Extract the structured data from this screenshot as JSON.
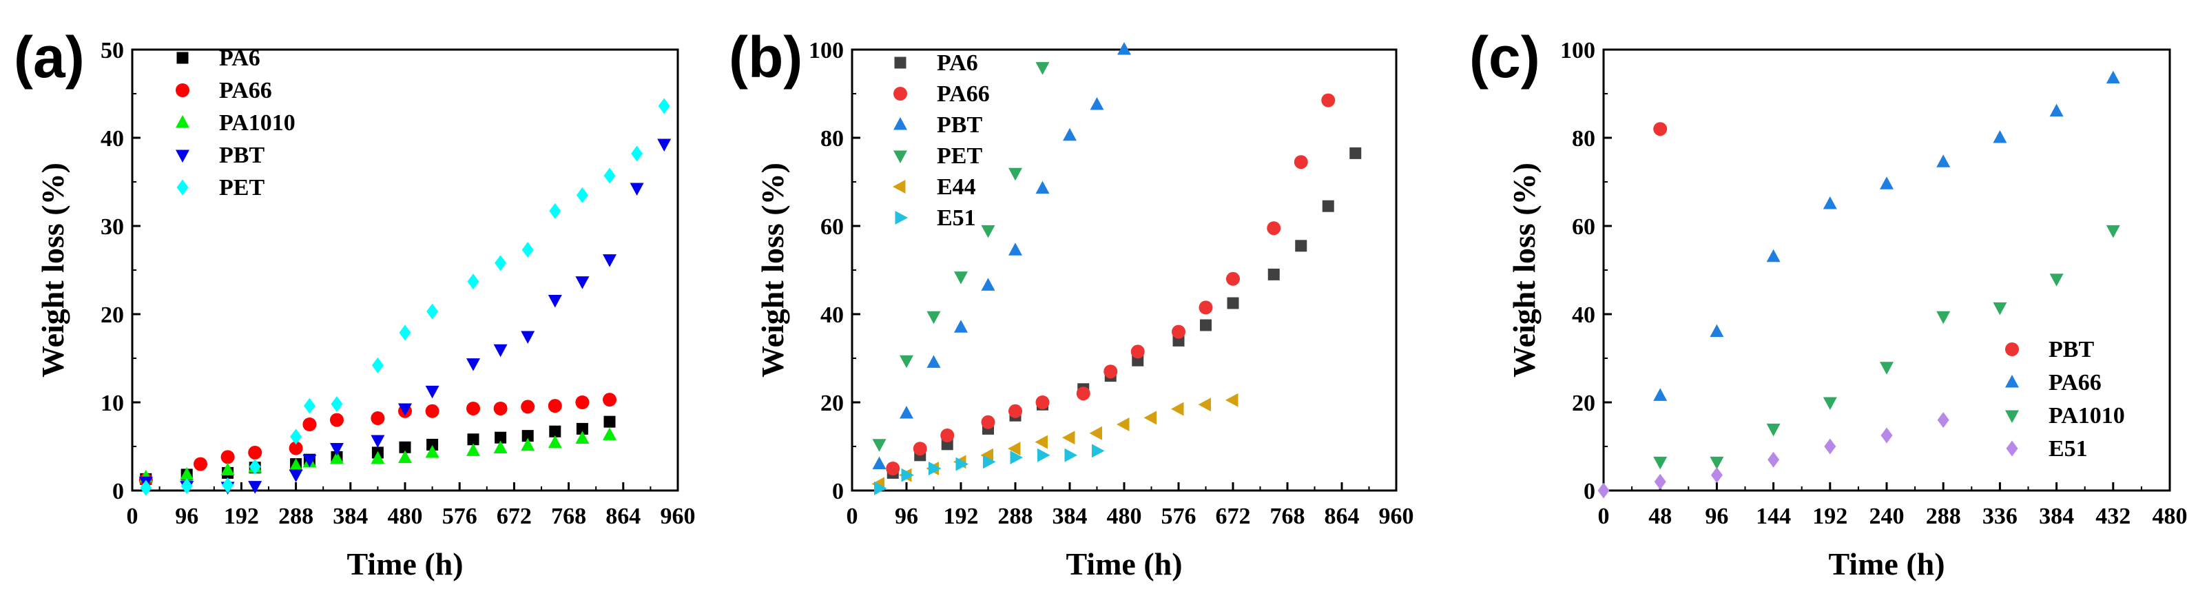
{
  "chart_data": [
    {
      "panel_label": "(a)",
      "type": "scatter",
      "xlabel": "Time (h)",
      "ylabel": "Weight loss (%)",
      "xlim": [
        0,
        960
      ],
      "ylim": [
        0,
        50
      ],
      "xticks": [
        0,
        96,
        192,
        288,
        384,
        480,
        576,
        672,
        768,
        864,
        960
      ],
      "yticks": [
        0,
        10,
        20,
        30,
        40,
        50
      ],
      "legend_position": "top-left",
      "series": [
        {
          "name": "PA6",
          "marker": "square",
          "color": "#000000",
          "x": [
            24,
            96,
            168,
            216,
            288,
            312,
            360,
            432,
            480,
            528,
            600,
            648,
            696,
            744,
            792,
            840
          ],
          "y": [
            1.3,
            1.8,
            2.0,
            2.6,
            3.0,
            3.5,
            3.8,
            4.3,
            4.9,
            5.2,
            5.8,
            6.0,
            6.2,
            6.7,
            7.0,
            7.8
          ]
        },
        {
          "name": "PA66",
          "marker": "circle",
          "color": "#ff0000",
          "x": [
            24,
            120,
            168,
            216,
            288,
            312,
            360,
            432,
            480,
            528,
            600,
            648,
            696,
            744,
            792,
            840
          ],
          "y": [
            1.2,
            3.0,
            3.8,
            4.3,
            4.8,
            7.5,
            8.0,
            8.2,
            9.0,
            9.0,
            9.3,
            9.3,
            9.5,
            9.6,
            10.0,
            10.3
          ]
        },
        {
          "name": "PA1010",
          "marker": "triangle-up",
          "color": "#00ee00",
          "x": [
            24,
            96,
            168,
            216,
            288,
            312,
            360,
            432,
            480,
            528,
            600,
            648,
            696,
            744,
            792,
            840
          ],
          "y": [
            1.5,
            1.8,
            2.3,
            2.6,
            2.8,
            3.2,
            3.6,
            3.6,
            3.7,
            4.3,
            4.5,
            4.8,
            5.1,
            5.4,
            5.9,
            6.3
          ]
        },
        {
          "name": "PBT",
          "marker": "triangle-down",
          "color": "#0000ee",
          "x": [
            24,
            96,
            168,
            216,
            288,
            312,
            360,
            432,
            480,
            528,
            600,
            648,
            696,
            744,
            792,
            840,
            888,
            936
          ],
          "y": [
            1.0,
            0.5,
            0.4,
            0.5,
            1.8,
            3.5,
            4.8,
            5.7,
            9.3,
            11.3,
            14.4,
            16.0,
            17.5,
            21.6,
            23.7,
            26.2,
            34.3,
            39.3
          ]
        },
        {
          "name": "PET",
          "marker": "diamond",
          "color": "#00ffff",
          "x": [
            24,
            96,
            168,
            216,
            288,
            312,
            360,
            432,
            480,
            528,
            600,
            648,
            696,
            744,
            792,
            840,
            888,
            936
          ],
          "y": [
            0.3,
            0.5,
            0.6,
            2.7,
            6.1,
            9.6,
            9.8,
            14.2,
            17.9,
            20.3,
            23.7,
            25.8,
            27.3,
            31.7,
            33.5,
            35.7,
            38.2,
            43.6
          ]
        }
      ]
    },
    {
      "panel_label": "(b)",
      "type": "scatter",
      "xlabel": "Time (h)",
      "ylabel": "Weight loss (%)",
      "xlim": [
        0,
        960
      ],
      "ylim": [
        0,
        100
      ],
      "xticks": [
        0,
        96,
        192,
        288,
        384,
        480,
        576,
        672,
        768,
        864,
        960
      ],
      "yticks": [
        0,
        20,
        40,
        60,
        80,
        100
      ],
      "legend_position": "top-left",
      "series": [
        {
          "name": "PA6",
          "marker": "square",
          "color": "#404040",
          "x": [
            72,
            120,
            168,
            240,
            288,
            336,
            408,
            456,
            504,
            576,
            624,
            672,
            744,
            792,
            840,
            888
          ],
          "y": [
            4,
            8,
            10.5,
            14,
            17,
            19.5,
            23,
            26,
            29.5,
            34,
            37.5,
            42.5,
            49,
            55.5,
            64.5,
            76.5
          ]
        },
        {
          "name": "PA66",
          "marker": "circle",
          "color": "#ee3333",
          "x": [
            72,
            120,
            168,
            240,
            288,
            336,
            408,
            456,
            504,
            576,
            624,
            672,
            744,
            792,
            840
          ],
          "y": [
            5,
            9.5,
            12.5,
            15.5,
            18,
            20,
            22,
            27,
            31.5,
            36,
            41.5,
            48,
            59.5,
            74.5,
            88.5
          ]
        },
        {
          "name": "PBT",
          "marker": "triangle-up",
          "color": "#1f7fe0",
          "x": [
            48,
            96,
            144,
            192,
            240,
            288,
            336,
            384,
            432,
            480
          ],
          "y": [
            6,
            17.5,
            29,
            37,
            46.5,
            54.5,
            68.5,
            80.5,
            87.5,
            100
          ]
        },
        {
          "name": "PET",
          "marker": "triangle-down",
          "color": "#2faa60",
          "x": [
            48,
            96,
            144,
            192,
            240,
            288,
            336
          ],
          "y": [
            10.5,
            29.5,
            39.5,
            48.5,
            59,
            72,
            96
          ]
        },
        {
          "name": "E44",
          "marker": "triangle-left",
          "color": "#d4a010",
          "x": [
            48,
            96,
            144,
            192,
            240,
            288,
            336,
            384,
            432,
            480,
            528,
            576,
            624,
            672
          ],
          "y": [
            1.5,
            3.5,
            5,
            6.5,
            8,
            9.5,
            11,
            12,
            13,
            15,
            16.5,
            18.5,
            19.5,
            20.5
          ]
        },
        {
          "name": "E51",
          "marker": "triangle-right",
          "color": "#20c0e0",
          "x": [
            48,
            96,
            144,
            192,
            240,
            288,
            336,
            384,
            432
          ],
          "y": [
            0.5,
            3.5,
            5,
            6,
            6.5,
            7.5,
            8,
            8,
            9
          ]
        }
      ]
    },
    {
      "panel_label": "(c)",
      "type": "scatter",
      "xlabel": "Time (h)",
      "ylabel": "Weight loss (%)",
      "xlim": [
        0,
        480
      ],
      "ylim": [
        0,
        100
      ],
      "xticks": [
        0,
        48,
        96,
        144,
        192,
        240,
        288,
        336,
        384,
        432,
        480
      ],
      "yticks": [
        0,
        20,
        40,
        60,
        80,
        100
      ],
      "legend_position": "bottom-right",
      "series": [
        {
          "name": "PBT",
          "marker": "circle",
          "color": "#ee3333",
          "x": [
            48
          ],
          "y": [
            82
          ]
        },
        {
          "name": "PA66",
          "marker": "triangle-up",
          "color": "#1f7fe0",
          "x": [
            48,
            96,
            144,
            192,
            240,
            288,
            336,
            384,
            432
          ],
          "y": [
            21.5,
            36,
            53,
            65,
            69.5,
            74.5,
            80,
            86,
            93.5
          ]
        },
        {
          "name": "PA1010",
          "marker": "triangle-down",
          "color": "#2faa60",
          "x": [
            48,
            96,
            144,
            192,
            240,
            288,
            336,
            384,
            432
          ],
          "y": [
            6.5,
            6.5,
            14,
            20,
            28,
            39.5,
            41.5,
            48,
            59
          ]
        },
        {
          "name": "E51",
          "marker": "diamond",
          "color": "#b888e8",
          "x": [
            0,
            48,
            96,
            144,
            192,
            240,
            288
          ],
          "y": [
            0,
            2,
            3.5,
            7,
            10,
            12.5,
            16
          ]
        }
      ]
    }
  ]
}
